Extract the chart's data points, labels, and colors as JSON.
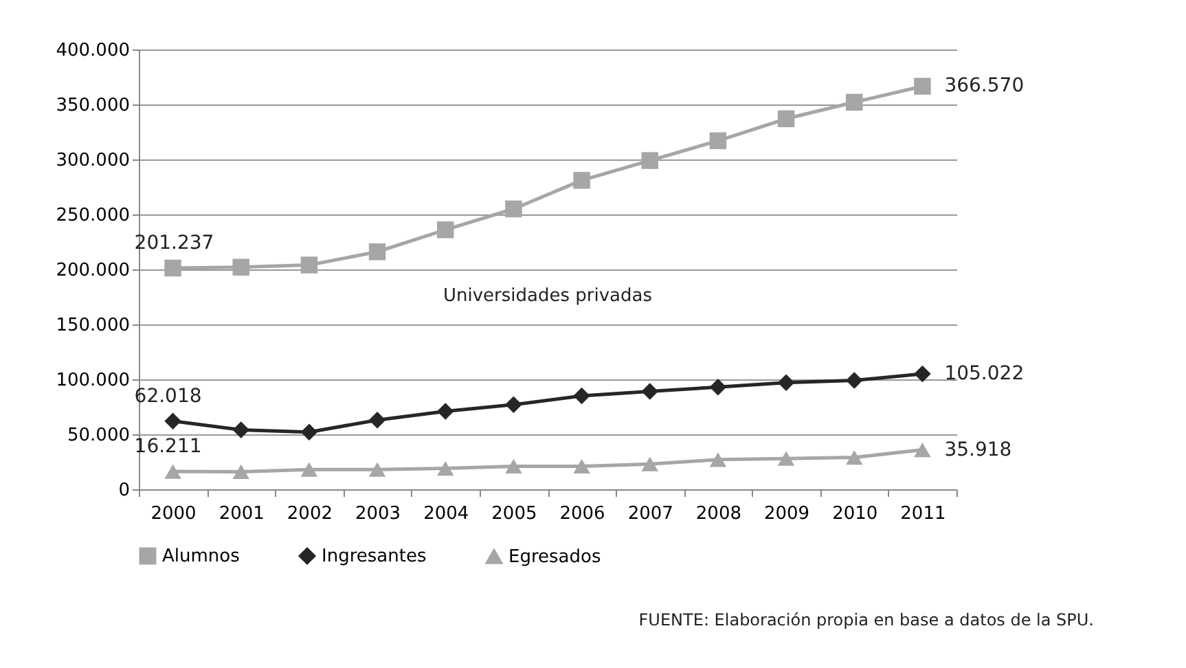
{
  "chart_data": {
    "type": "line",
    "categories": [
      "2000",
      "2001",
      "2002",
      "2003",
      "2004",
      "2005",
      "2006",
      "2007",
      "2008",
      "2009",
      "2010",
      "2011"
    ],
    "ylim": [
      0,
      400000
    ],
    "yticks": [
      {
        "value": 0,
        "label": "0"
      },
      {
        "value": 50000,
        "label": "50.000"
      },
      {
        "value": 100000,
        "label": "100.000"
      },
      {
        "value": 150000,
        "label": "150.000"
      },
      {
        "value": 200000,
        "label": "200.000"
      },
      {
        "value": 250000,
        "label": "250.000"
      },
      {
        "value": 300000,
        "label": "300.000"
      },
      {
        "value": 350000,
        "label": "350.000"
      },
      {
        "value": 400000,
        "label": "400.000"
      }
    ],
    "grid": "y",
    "legend": "bottom",
    "series": [
      {
        "name": "Alumnos",
        "color": "#a6a6a6",
        "marker": "square",
        "values": [
          201237,
          202000,
          204000,
          216000,
          236000,
          255000,
          281000,
          299000,
          317000,
          337000,
          352000,
          366570
        ],
        "value_labels": [
          "201.237",
          null,
          null,
          null,
          null,
          null,
          null,
          null,
          null,
          null,
          null,
          "366.570"
        ]
      },
      {
        "name": "Ingresantes",
        "color": "#262626",
        "marker": "diamond",
        "values": [
          62018,
          54000,
          52000,
          63000,
          71000,
          77000,
          85000,
          89000,
          93000,
          97000,
          99000,
          105022
        ],
        "value_labels": [
          "62.018",
          null,
          null,
          null,
          null,
          null,
          null,
          null,
          null,
          null,
          null,
          "105.022"
        ]
      },
      {
        "name": "Egresados",
        "color": "#a6a6a6",
        "marker": "triangle",
        "values": [
          16211,
          16000,
          18000,
          18000,
          19000,
          21000,
          21000,
          23000,
          27000,
          28000,
          29000,
          35918
        ],
        "value_labels": [
          "16.211",
          null,
          null,
          null,
          null,
          null,
          null,
          null,
          null,
          null,
          null,
          "35.918"
        ]
      }
    ],
    "annotations": [
      "Universidades privadas",
      "FUENTE: Elaboración propia en base a datos de la SPU."
    ]
  }
}
